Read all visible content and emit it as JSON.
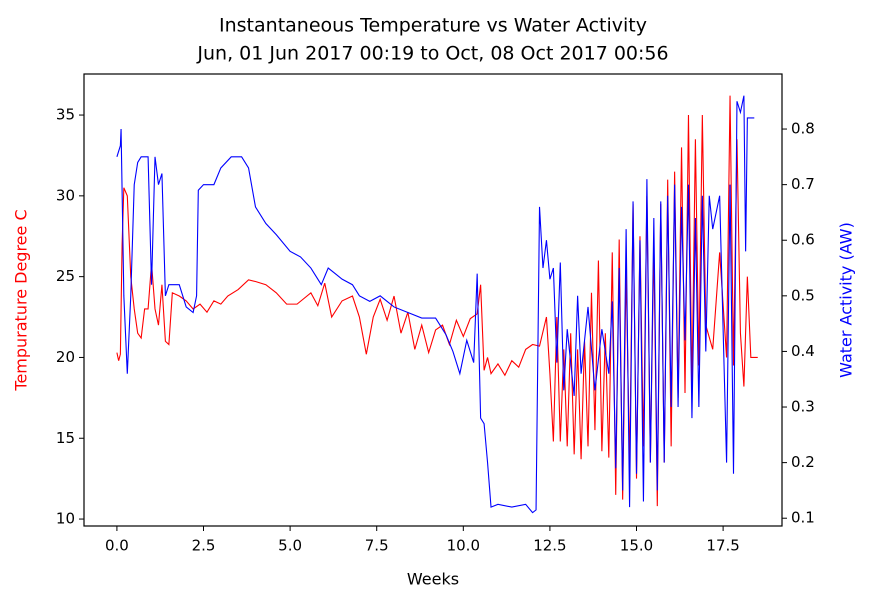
{
  "chart_data": {
    "type": "line",
    "title": "Instantaneous Temperature vs Water Activity",
    "subtitle": "Jun, 01 Jun 2017 00:19 to Oct, 08 Oct 2017 00:56",
    "xlabel": "Weeks",
    "ylabel": "Tempurature Degree C",
    "y2label": "Water Activity (AW)",
    "xlim": [
      -0.95,
      19.2
    ],
    "xticks": [
      {
        "value": 0,
        "label": "0.0"
      },
      2.5,
      {
        "value": 5,
        "label": "5.0"
      },
      7.5,
      {
        "value": 10,
        "label": "10.0"
      },
      12.5,
      {
        "value": 15,
        "label": "15.0"
      },
      17.5
    ],
    "ylim": [
      9.57,
      37.54
    ],
    "yticks": [
      10,
      15,
      20,
      25,
      30,
      35
    ],
    "y2lim": [
      0.086,
      0.899
    ],
    "y2ticks": [
      0.1,
      0.2,
      0.3,
      0.4,
      0.5,
      0.6,
      0.7,
      0.8
    ],
    "series": [
      {
        "name": "Tempurature Degree C",
        "color": "#ff0000",
        "axis": "y",
        "x": [
          0,
          0.05,
          0.1,
          0.15,
          0.2,
          0.3,
          0.4,
          0.5,
          0.6,
          0.7,
          0.8,
          0.9,
          1.0,
          1.1,
          1.2,
          1.3,
          1.4,
          1.5,
          1.6,
          1.8,
          2.0,
          2.2,
          2.4,
          2.6,
          2.8,
          3.0,
          3.2,
          3.5,
          3.8,
          4.0,
          4.3,
          4.6,
          4.9,
          5.2,
          5.6,
          5.8,
          6.0,
          6.2,
          6.5,
          6.8,
          7.0,
          7.2,
          7.4,
          7.6,
          7.8,
          8.0,
          8.2,
          8.4,
          8.6,
          8.8,
          9.0,
          9.2,
          9.4,
          9.6,
          9.8,
          10.0,
          10.2,
          10.4,
          10.5,
          10.6,
          10.7,
          10.8,
          11.0,
          11.2,
          11.4,
          11.6,
          11.8,
          12.0,
          12.2,
          12.4,
          12.5,
          12.6,
          12.7,
          12.8,
          12.9,
          13.0,
          13.1,
          13.2,
          13.3,
          13.4,
          13.5,
          13.6,
          13.7,
          13.8,
          13.9,
          14.0,
          14.1,
          14.2,
          14.3,
          14.4,
          14.5,
          14.6,
          14.7,
          14.8,
          14.9,
          15.0,
          15.1,
          15.2,
          15.3,
          15.4,
          15.5,
          15.6,
          15.7,
          15.8,
          15.9,
          16.0,
          16.1,
          16.2,
          16.3,
          16.4,
          16.5,
          16.6,
          16.7,
          16.8,
          16.9,
          17.0,
          17.2,
          17.4,
          17.6,
          17.7,
          17.8,
          17.9,
          18.0,
          18.1,
          18.2,
          18.3,
          18.5
        ],
        "values": [
          20.3,
          19.8,
          20.2,
          27,
          30.5,
          30,
          25,
          23,
          21.5,
          21.2,
          23,
          23,
          25.8,
          23,
          22,
          24.5,
          21,
          20.8,
          24,
          23.8,
          23.5,
          23,
          23.3,
          22.8,
          23.5,
          23.3,
          23.8,
          24.2,
          24.8,
          24.7,
          24.5,
          24,
          23.3,
          23.3,
          24,
          23.2,
          24.6,
          22.5,
          23.5,
          23.8,
          22.5,
          20.2,
          22.5,
          23.6,
          22.3,
          23.8,
          21.5,
          22.8,
          20.5,
          22,
          20.3,
          21.7,
          22,
          20.8,
          22.3,
          21.3,
          22.4,
          22.7,
          24.5,
          19.2,
          20,
          19,
          19.6,
          18.9,
          19.8,
          19.4,
          20.5,
          20.8,
          20.7,
          22.5,
          19,
          14.8,
          22.5,
          14.8,
          20.5,
          14.5,
          21.5,
          14,
          20.5,
          13.7,
          21,
          14.5,
          24,
          15.5,
          26,
          14.2,
          21.5,
          13.8,
          26.5,
          11.5,
          27.3,
          11.2,
          25.5,
          13.2,
          29.5,
          12.5,
          27.5,
          14.5,
          30,
          13.5,
          27,
          10.8,
          29.5,
          13.5,
          31,
          14.5,
          31.5,
          17.5,
          33,
          17.8,
          35,
          18,
          33.5,
          19.5,
          35,
          22,
          20.5,
          26.5,
          20,
          36.2,
          19.5,
          33.5,
          21.5,
          18.2,
          25,
          20,
          20
        ]
      },
      {
        "name": "Water Activity (AW)",
        "color": "#0000ff",
        "axis": "y2",
        "x": [
          0,
          0.1,
          0.12,
          0.2,
          0.3,
          0.4,
          0.5,
          0.6,
          0.7,
          0.9,
          1.0,
          1.1,
          1.2,
          1.3,
          1.4,
          1.5,
          1.8,
          2.0,
          2.2,
          2.3,
          2.35,
          2.5,
          2.8,
          3.0,
          3.3,
          3.6,
          3.8,
          4.0,
          4.3,
          4.6,
          5.0,
          5.3,
          5.6,
          5.9,
          6.1,
          6.3,
          6.5,
          6.8,
          7.0,
          7.3,
          7.6,
          8.0,
          8.4,
          8.8,
          9.2,
          9.5,
          9.7,
          9.9,
          10.1,
          10.3,
          10.4,
          10.5,
          10.6,
          10.7,
          10.8,
          11.0,
          11.4,
          11.8,
          12.0,
          12.1,
          12.2,
          12.3,
          12.4,
          12.5,
          12.6,
          12.7,
          12.8,
          12.9,
          13.0,
          13.2,
          13.3,
          13.4,
          13.6,
          13.8,
          14.0,
          14.2,
          14.3,
          14.4,
          14.5,
          14.6,
          14.7,
          14.8,
          14.9,
          15.0,
          15.1,
          15.2,
          15.3,
          15.4,
          15.5,
          15.6,
          15.7,
          15.8,
          15.9,
          16.0,
          16.1,
          16.2,
          16.3,
          16.4,
          16.5,
          16.6,
          16.7,
          16.8,
          16.9,
          17.0,
          17.1,
          17.2,
          17.4,
          17.6,
          17.7,
          17.8,
          17.9,
          18.0,
          18.1,
          18.15,
          18.2,
          18.3,
          18.4
        ],
        "values": [
          0.75,
          0.77,
          0.8,
          0.5,
          0.36,
          0.5,
          0.7,
          0.74,
          0.75,
          0.75,
          0.52,
          0.75,
          0.7,
          0.72,
          0.5,
          0.52,
          0.52,
          0.48,
          0.47,
          0.5,
          0.69,
          0.7,
          0.7,
          0.73,
          0.75,
          0.75,
          0.73,
          0.66,
          0.63,
          0.61,
          0.58,
          0.57,
          0.55,
          0.52,
          0.55,
          0.54,
          0.53,
          0.52,
          0.5,
          0.49,
          0.5,
          0.48,
          0.47,
          0.46,
          0.46,
          0.43,
          0.4,
          0.36,
          0.42,
          0.38,
          0.54,
          0.28,
          0.27,
          0.2,
          0.12,
          0.125,
          0.12,
          0.125,
          0.11,
          0.115,
          0.66,
          0.55,
          0.6,
          0.53,
          0.55,
          0.38,
          0.56,
          0.33,
          0.44,
          0.32,
          0.5,
          0.36,
          0.48,
          0.33,
          0.44,
          0.36,
          0.49,
          0.19,
          0.55,
          0.15,
          0.62,
          0.12,
          0.67,
          0.18,
          0.6,
          0.13,
          0.71,
          0.2,
          0.64,
          0.15,
          0.67,
          0.2,
          0.68,
          0.3,
          0.7,
          0.3,
          0.66,
          0.42,
          0.7,
          0.28,
          0.64,
          0.3,
          0.68,
          0.4,
          0.68,
          0.62,
          0.68,
          0.2,
          0.7,
          0.18,
          0.85,
          0.83,
          0.86,
          0.58,
          0.82,
          0.82,
          0.82
        ]
      }
    ]
  }
}
